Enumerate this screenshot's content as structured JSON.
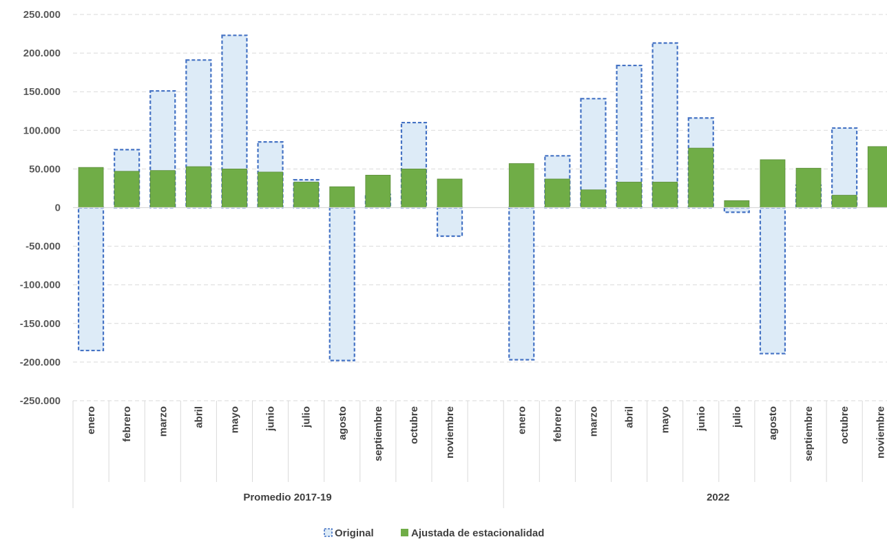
{
  "chart_data": {
    "type": "bar",
    "ylim": [
      -250000,
      250000
    ],
    "yticks": [
      {
        "value": 250000,
        "label": "250.000"
      },
      {
        "value": 200000,
        "label": "200.000"
      },
      {
        "value": 150000,
        "label": "150.000"
      },
      {
        "value": 100000,
        "label": "100.000"
      },
      {
        "value": 50000,
        "label": "50.000"
      },
      {
        "value": 0,
        "label": "0"
      },
      {
        "value": -50000,
        "label": "-50.000"
      },
      {
        "value": -100000,
        "label": "-100.000"
      },
      {
        "value": -150000,
        "label": "-150.000"
      },
      {
        "value": -200000,
        "label": "-200.000"
      },
      {
        "value": -250000,
        "label": "-250.000"
      }
    ],
    "grid": true,
    "legend_position": "bottom",
    "colors": {
      "original_fill": "#ddebf7",
      "original_stroke": "#4472c4",
      "adjusted_fill": "#70ad47",
      "adjusted_stroke": "#5b8c3a",
      "grid": "#d9d9d9",
      "axis_line": "#d9d9d9"
    },
    "series": [
      {
        "name": "Original",
        "key": "original"
      },
      {
        "name": "Ajustada de estacionalidad",
        "key": "adjusted"
      }
    ],
    "groups": [
      {
        "label": "Promedio 2017-19",
        "categories": [
          "enero",
          "febrero",
          "marzo",
          "abril",
          "mayo",
          "junio",
          "julio",
          "agosto",
          "septiembre",
          "octubre",
          "noviembre"
        ],
        "original": [
          -185000,
          75000,
          151000,
          191000,
          223000,
          85000,
          36000,
          -198000,
          17000,
          110000,
          -37000
        ],
        "adjusted": [
          52000,
          47000,
          48000,
          53000,
          50000,
          46000,
          33000,
          27000,
          42000,
          50000,
          37000
        ]
      },
      {
        "label": "2022",
        "categories": [
          "enero",
          "febrero",
          "marzo",
          "abril",
          "mayo",
          "junio",
          "julio",
          "agosto",
          "septiembre",
          "octubre",
          "noviembre"
        ],
        "original": [
          -197000,
          67000,
          141000,
          184000,
          213000,
          116000,
          -6000,
          -189000,
          29000,
          103000,
          0
        ],
        "adjusted": [
          57000,
          37000,
          23000,
          33000,
          33000,
          77000,
          9000,
          62000,
          51000,
          16000,
          79000
        ]
      }
    ]
  }
}
